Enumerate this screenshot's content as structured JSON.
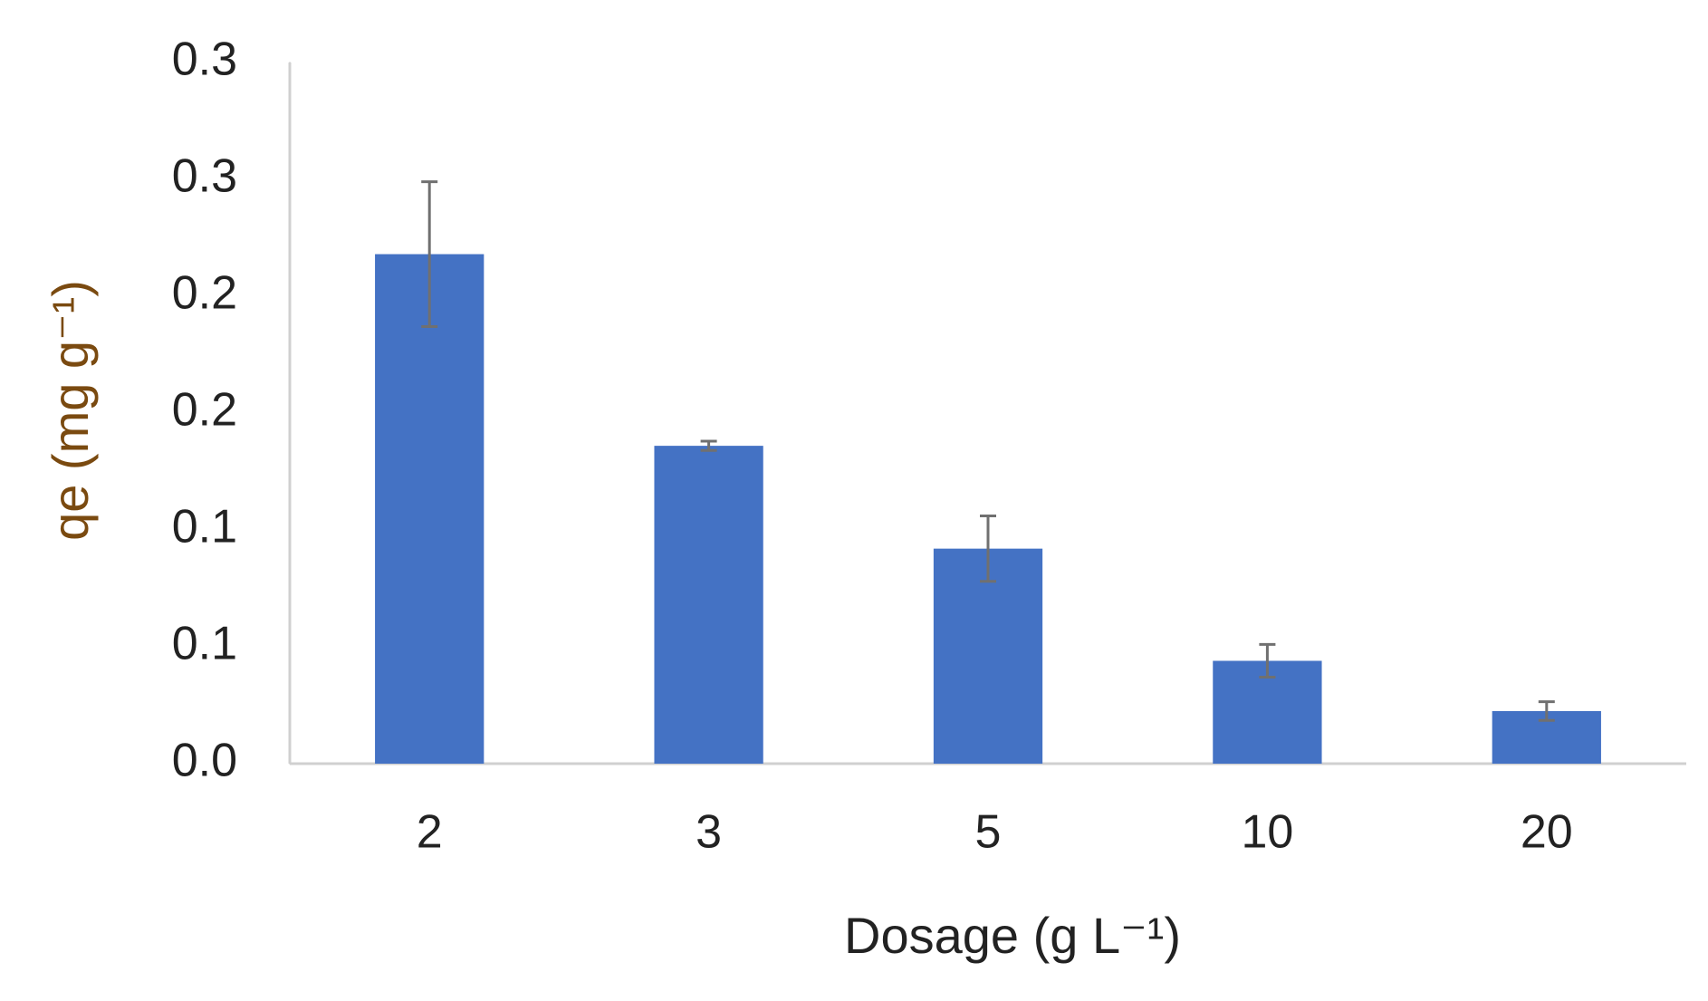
{
  "chart_data": {
    "type": "bar",
    "x_label": "Dosage (g L⁻¹)",
    "y_label": "qe (mg g⁻¹)",
    "categories": [
      "2",
      "3",
      "5",
      "10",
      "20"
    ],
    "values": [
      0.218,
      0.136,
      0.092,
      0.044,
      0.0225
    ],
    "errors": [
      0.031,
      0.002,
      0.014,
      0.007,
      0.004
    ],
    "color": "#4472c4",
    "ylim": [
      0,
      0.3
    ],
    "yticks": [
      {
        "value": 0,
        "label": "0.0"
      },
      {
        "value": 0.05,
        "label": "0.1"
      },
      0.1,
      {
        "value": 0.15,
        "label": "0.2"
      },
      0.2,
      {
        "value": 0.25,
        "label": "0.3"
      },
      0.3
    ],
    "grid": false
  }
}
